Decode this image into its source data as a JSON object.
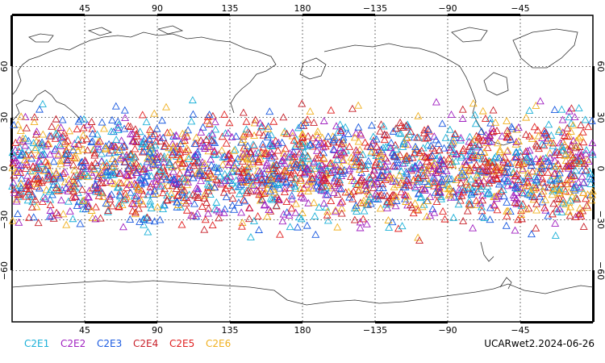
{
  "map": {
    "lon_ticks": [
      "45",
      "90",
      "135",
      "180",
      "−135",
      "−90",
      "−45"
    ],
    "lat_ticks": [
      "60",
      "30",
      "0",
      "−30",
      "−60"
    ],
    "grid": true,
    "projection": "cylindrical, 0° to 360° longitude, -90° to 90° latitude",
    "observation_band_lat": [
      -45,
      45
    ],
    "marker_shape": "open-triangle"
  },
  "legend": [
    {
      "label": "C2E1",
      "color": "#1ab0d8"
    },
    {
      "label": "C2E2",
      "color": "#a020c0"
    },
    {
      "label": "C2E3",
      "color": "#1a5ae0"
    },
    {
      "label": "C2E4",
      "color": "#c8202a"
    },
    {
      "label": "C2E5",
      "color": "#e02020"
    },
    {
      "label": "C2E6",
      "color": "#f0b020"
    }
  ],
  "footer": {
    "stamp": "UCARwet2.2024-06-26"
  }
}
